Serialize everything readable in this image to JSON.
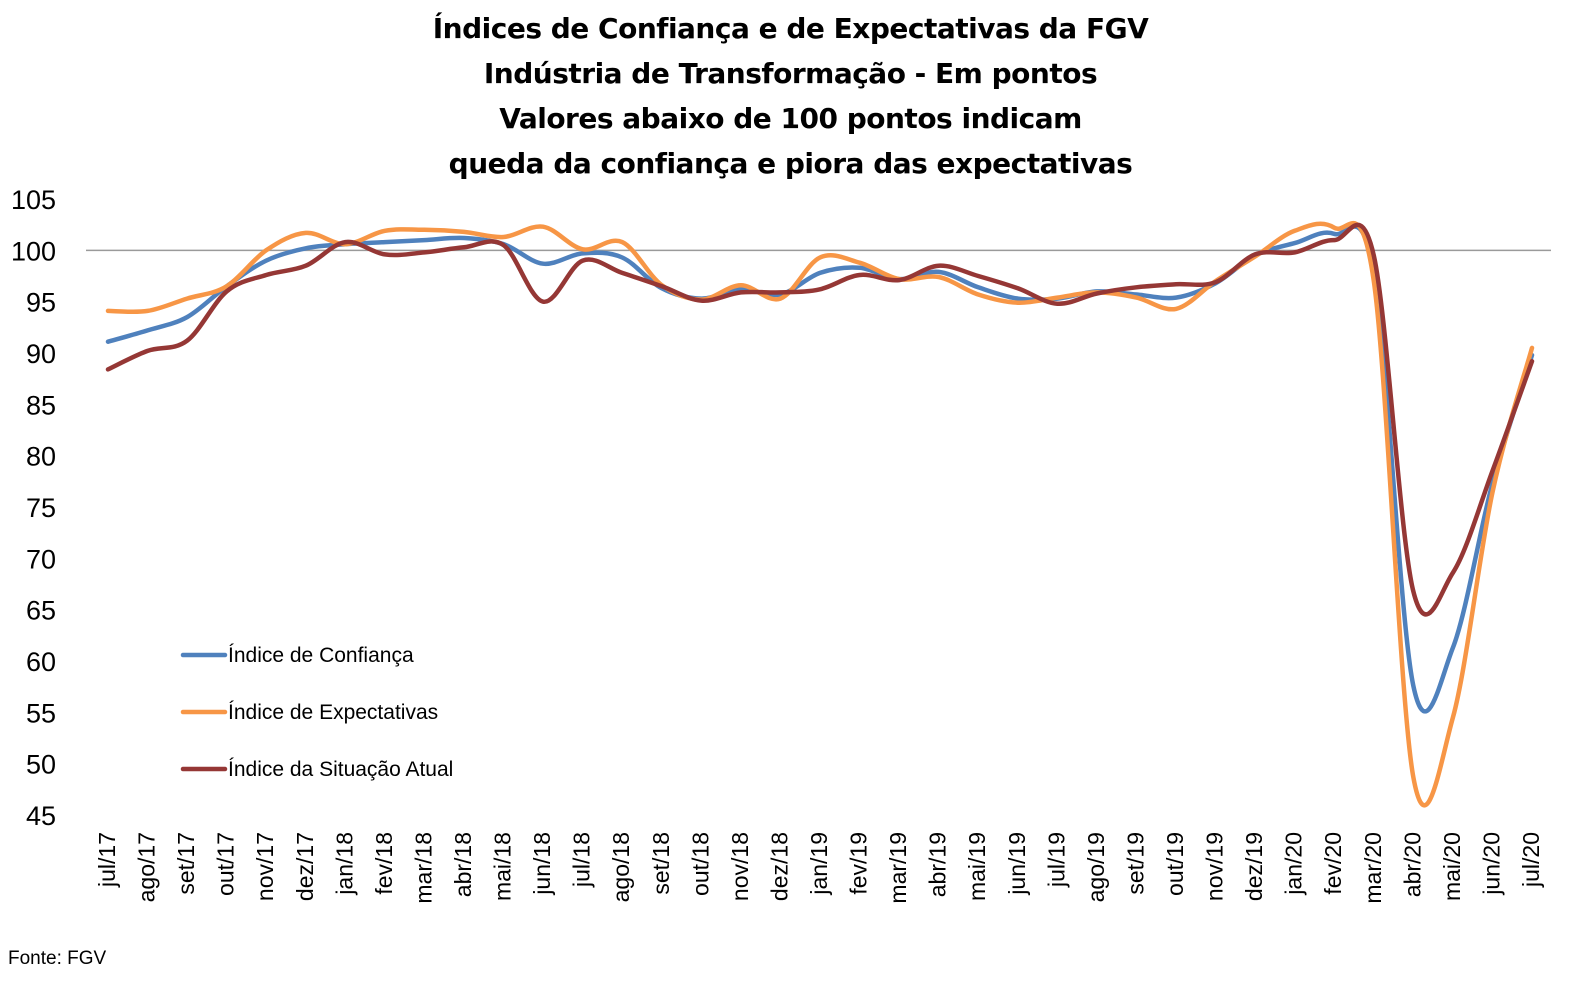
{
  "chart_data": {
    "type": "line",
    "title_lines": [
      "Índices de Confiança e de Expectativas da FGV",
      "Indústria de Transformação - Em pontos",
      "Valores abaixo de 100 pontos indicam",
      "queda da confiança e piora das expectativas"
    ],
    "source": "Fonte: FGV",
    "x": [
      "jul/17",
      "ago/17",
      "set/17",
      "out/17",
      "nov/17",
      "dez/17",
      "jan/18",
      "fev/18",
      "mar/18",
      "abr/18",
      "mai/18",
      "jun/18",
      "jul/18",
      "ago/18",
      "set/18",
      "out/18",
      "nov/18",
      "dez/18",
      "jan/19",
      "fev/19",
      "mar/19",
      "abr/19",
      "mai/19",
      "jun/19",
      "jul/19",
      "ago/19",
      "set/19",
      "out/19",
      "nov/19",
      "dez/19",
      "jan/20",
      "fev/20",
      "mar/20",
      "abr/20",
      "mai/20",
      "jun/20",
      "jul/20"
    ],
    "yticks": [
      105,
      100,
      95,
      90,
      85,
      80,
      75,
      70,
      65,
      60,
      55,
      50,
      45
    ],
    "ylim": [
      45,
      105
    ],
    "reference_line": 100,
    "legend_position": "lower-left",
    "series": [
      {
        "name": "Índice de Confiança",
        "color": "#4F81BD",
        "values": [
          91.1,
          92.2,
          93.5,
          96.5,
          99.0,
          100.2,
          100.6,
          100.8,
          101.0,
          101.2,
          100.6,
          98.7,
          99.7,
          99.3,
          96.3,
          95.3,
          96.2,
          95.7,
          97.8,
          98.3,
          97.2,
          97.9,
          96.4,
          95.3,
          95.3,
          96.0,
          95.7,
          95.4,
          96.8,
          99.5,
          100.7,
          101.6,
          97.9,
          57.6,
          61.3,
          77.3,
          89.8
        ]
      },
      {
        "name": "Índice de Expectativas",
        "color": "#F79646",
        "values": [
          94.1,
          94.1,
          95.3,
          96.5,
          100.0,
          101.7,
          100.6,
          101.9,
          102.0,
          101.8,
          101.3,
          102.3,
          100.1,
          100.8,
          96.6,
          95.2,
          96.6,
          95.3,
          99.3,
          98.8,
          97.2,
          97.4,
          95.7,
          94.9,
          95.4,
          95.9,
          95.4,
          94.3,
          97.0,
          99.4,
          101.9,
          102.2,
          97.0,
          48.7,
          54.5,
          76.4,
          90.5
        ]
      },
      {
        "name": "Índice da Situação Atual",
        "color": "#953735",
        "values": [
          88.4,
          90.2,
          91.2,
          96.0,
          97.6,
          98.5,
          100.8,
          99.6,
          99.8,
          100.3,
          100.5,
          95.0,
          99.0,
          97.8,
          96.5,
          95.1,
          95.9,
          95.9,
          96.2,
          97.6,
          97.1,
          98.5,
          97.5,
          96.3,
          94.8,
          95.8,
          96.4,
          96.7,
          96.9,
          99.6,
          99.8,
          101.0,
          99.5,
          66.8,
          68.6,
          78.5,
          89.2
        ]
      }
    ]
  }
}
